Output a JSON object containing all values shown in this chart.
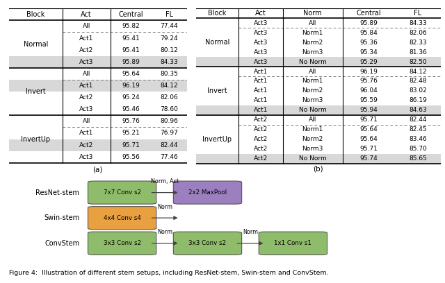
{
  "table_a": {
    "header": [
      "Block",
      "Act",
      "Central",
      "FL"
    ],
    "groups": [
      {
        "name": "Normal",
        "rows": [
          [
            "All",
            "95.82",
            "77.44"
          ],
          [
            "Act1",
            "95.41",
            "79.24"
          ],
          [
            "Act2",
            "95.41",
            "80.12"
          ],
          [
            "Act3",
            "95.89",
            "84.33"
          ]
        ],
        "highlight_row": 3,
        "dashed_row": 1
      },
      {
        "name": "Invert",
        "rows": [
          [
            "All",
            "95.64",
            "80.35"
          ],
          [
            "Act1",
            "96.19",
            "84.12"
          ],
          [
            "Act2",
            "95.24",
            "82.06"
          ],
          [
            "Act3",
            "95.46",
            "78.60"
          ]
        ],
        "highlight_row": 1,
        "dashed_row": 1
      },
      {
        "name": "InvertUp",
        "rows": [
          [
            "All",
            "95.76",
            "80.96"
          ],
          [
            "Act1",
            "95.21",
            "76.97"
          ],
          [
            "Act2",
            "95.71",
            "82.44"
          ],
          [
            "Act3",
            "95.56",
            "77.46"
          ]
        ],
        "highlight_row": 2,
        "dashed_row": 1
      }
    ],
    "caption": "(a)"
  },
  "table_b": {
    "header": [
      "Block",
      "Act",
      "Norm",
      "Central",
      "FL"
    ],
    "groups": [
      {
        "name": "Normal",
        "rows": [
          [
            "Act3",
            "All",
            "95.89",
            "84.33"
          ],
          [
            "Act3",
            "Norm1",
            "95.84",
            "82.06"
          ],
          [
            "Act3",
            "Norm2",
            "95.36",
            "82.33"
          ],
          [
            "Act3",
            "Norm3",
            "95.34",
            "81.36"
          ],
          [
            "Act3",
            "No Norm",
            "95.29",
            "82.50"
          ]
        ],
        "highlight_row": 4,
        "dashed_row": 1
      },
      {
        "name": "Invert",
        "rows": [
          [
            "Act1",
            "All",
            "96.19",
            "84.12"
          ],
          [
            "Act1",
            "Norm1",
            "95.76",
            "82.48"
          ],
          [
            "Act1",
            "Norm2",
            "96.04",
            "83.02"
          ],
          [
            "Act1",
            "Norm3",
            "95.59",
            "86.19"
          ],
          [
            "Act1",
            "No Norm",
            "95.94",
            "84.63"
          ]
        ],
        "highlight_row": 4,
        "dashed_row": 1
      },
      {
        "name": "InvertUp",
        "rows": [
          [
            "Act2",
            "All",
            "95.71",
            "82.44"
          ],
          [
            "Act2",
            "Norm1",
            "95.64",
            "82.45"
          ],
          [
            "Act2",
            "Norm2",
            "95.64",
            "83.46"
          ],
          [
            "Act2",
            "Norm3",
            "95.71",
            "85.70"
          ],
          [
            "Act2",
            "No Norm",
            "95.74",
            "85.65"
          ]
        ],
        "highlight_row": 4,
        "dashed_row": 1
      }
    ],
    "caption": "(b)"
  },
  "stem_rows": [
    {
      "label": "ResNet-stem",
      "elements": [
        {
          "type": "box",
          "text": "7x7 Conv s2",
          "color": "#8FBC6A"
        },
        {
          "type": "arrow",
          "label": "Norm, Act"
        },
        {
          "type": "box",
          "text": "2x2 MaxPool",
          "color": "#9B7FBF"
        }
      ]
    },
    {
      "label": "Swin-stem",
      "elements": [
        {
          "type": "box",
          "text": "4x4 Conv s4",
          "color": "#E8A040"
        },
        {
          "type": "arrow",
          "label": "Norm"
        }
      ]
    },
    {
      "label": "ConvStem",
      "elements": [
        {
          "type": "box",
          "text": "3x3 Conv s2",
          "color": "#8FBC6A"
        },
        {
          "type": "arrow",
          "label": "Norm"
        },
        {
          "type": "box",
          "text": "3x3 Conv s2",
          "color": "#8FBC6A"
        },
        {
          "type": "arrow",
          "label": "Norm"
        },
        {
          "type": "box",
          "text": "1x1 Conv s1",
          "color": "#8FBC6A"
        }
      ]
    }
  ],
  "caption": "Figure 4:  Illustration of different stem setups, including ResNet-stem, Swin-stem and ConvStem."
}
